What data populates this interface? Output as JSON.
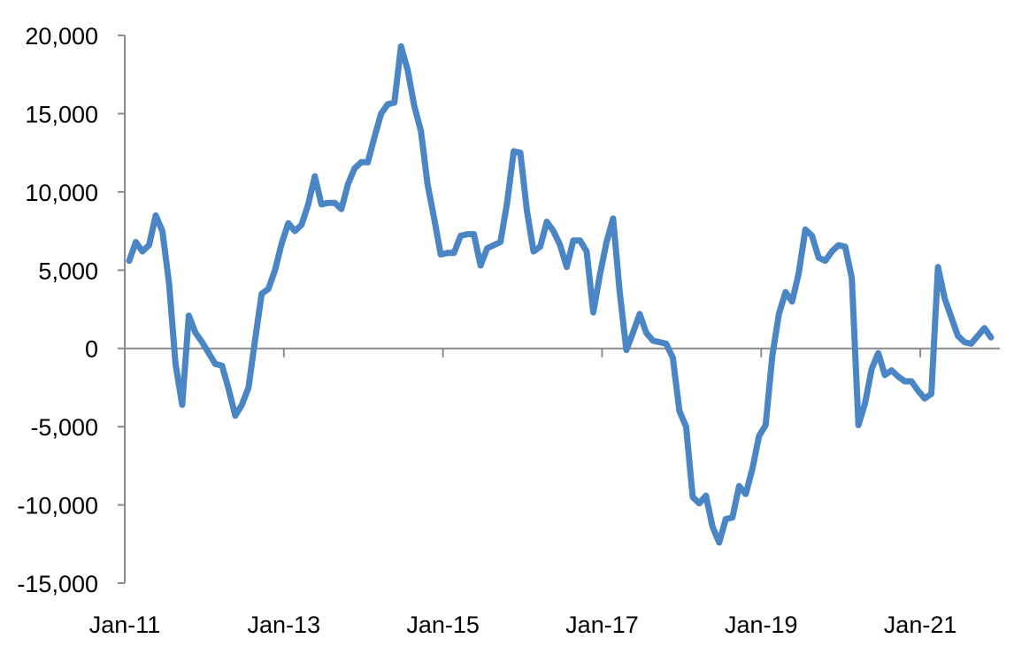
{
  "chart_data": {
    "type": "line",
    "title": "",
    "xlabel": "",
    "ylabel": "",
    "x_range": [
      "2011-01",
      "2021-12"
    ],
    "ylim": [
      -15000,
      20000
    ],
    "y_ticks": [
      20000,
      15000,
      10000,
      5000,
      0,
      -5000,
      -10000,
      -15000
    ],
    "y_tick_labels": [
      "20,000",
      "15,000",
      "10,000",
      "5,000",
      "0",
      "-5,000",
      "-10,000",
      "-15,000"
    ],
    "x_tick_labels": [
      "Jan-11",
      "Jan-13",
      "Jan-15",
      "Jan-17",
      "Jan-19",
      "Jan-21"
    ],
    "x_tick_dates": [
      "2011-01",
      "2013-01",
      "2015-01",
      "2017-01",
      "2019-01",
      "2021-01"
    ],
    "zero_line": true,
    "grid": false,
    "legend": "none",
    "colors": {
      "series": "#4A86C5",
      "axis": "#8C8C8C"
    },
    "series": [
      {
        "x": [
          "2011-01",
          "2011-02",
          "2011-03",
          "2011-04",
          "2011-05",
          "2011-06",
          "2011-07",
          "2011-08",
          "2011-09",
          "2011-10",
          "2011-11",
          "2011-12",
          "2012-01",
          "2012-02",
          "2012-03",
          "2012-04",
          "2012-05",
          "2012-06",
          "2012-07",
          "2012-08",
          "2012-09",
          "2012-10",
          "2012-11",
          "2012-12",
          "2013-01",
          "2013-02",
          "2013-03",
          "2013-04",
          "2013-05",
          "2013-06",
          "2013-07",
          "2013-08",
          "2013-09",
          "2013-10",
          "2013-11",
          "2013-12",
          "2014-01",
          "2014-02",
          "2014-03",
          "2014-04",
          "2014-05",
          "2014-06",
          "2014-07",
          "2014-08",
          "2014-09",
          "2014-10",
          "2014-11",
          "2014-12",
          "2015-01",
          "2015-02",
          "2015-03",
          "2015-04",
          "2015-05",
          "2015-06",
          "2015-07",
          "2015-08",
          "2015-09",
          "2015-10",
          "2015-11",
          "2015-12",
          "2016-01",
          "2016-02",
          "2016-03",
          "2016-04",
          "2016-05",
          "2016-06",
          "2016-07",
          "2016-08",
          "2016-09",
          "2016-10",
          "2016-11",
          "2016-12",
          "2017-01",
          "2017-02",
          "2017-03",
          "2017-04",
          "2017-05",
          "2017-06",
          "2017-07",
          "2017-08",
          "2017-09",
          "2017-10",
          "2017-11",
          "2017-12",
          "2018-01",
          "2018-02",
          "2018-03",
          "2018-04",
          "2018-05",
          "2018-06",
          "2018-07",
          "2018-08",
          "2018-09",
          "2018-10",
          "2018-11",
          "2018-12",
          "2019-01",
          "2019-02",
          "2019-03",
          "2019-04",
          "2019-05",
          "2019-06",
          "2019-07",
          "2019-08",
          "2019-09",
          "2019-10",
          "2019-11",
          "2019-12",
          "2020-01",
          "2020-02",
          "2020-03",
          "2020-04",
          "2020-05",
          "2020-06",
          "2020-07",
          "2020-08",
          "2020-09",
          "2020-10",
          "2020-11",
          "2020-12",
          "2021-01",
          "2021-02",
          "2021-03",
          "2021-04",
          "2021-05",
          "2021-06",
          "2021-07",
          "2021-08",
          "2021-09",
          "2021-10",
          "2021-11",
          "2021-12"
        ],
        "values": [
          5600,
          6800,
          6200,
          6600,
          8500,
          7500,
          4200,
          -1000,
          -3600,
          2100,
          1000,
          400,
          -300,
          -1000,
          -1100,
          -2600,
          -4300,
          -3600,
          -2500,
          600,
          3500,
          3800,
          5000,
          6700,
          8000,
          7500,
          7900,
          9200,
          11000,
          9200,
          9300,
          9300,
          8900,
          10500,
          11500,
          11900,
          11900,
          13500,
          15000,
          15600,
          15700,
          19300,
          17800,
          15500,
          13900,
          10500,
          8300,
          6000,
          6100,
          6100,
          7200,
          7300,
          7300,
          5300,
          6400,
          6600,
          6800,
          9300,
          12600,
          12500,
          8800,
          6200,
          6500,
          8100,
          7500,
          6600,
          5200,
          6900,
          6900,
          6200,
          2300,
          4700,
          6800,
          8300,
          3600,
          -100,
          1000,
          2200,
          1000,
          500,
          400,
          300,
          -600,
          -4000,
          -5000,
          -9500,
          -9900,
          -9400,
          -11400,
          -12400,
          -10900,
          -10800,
          -8800,
          -9300,
          -7700,
          -5600,
          -4900,
          -500,
          2200,
          3600,
          3000,
          4800,
          7600,
          7200,
          5800,
          5600,
          6200,
          6600,
          6500,
          4500,
          -4900,
          -3500,
          -1300,
          -300,
          -1700,
          -1400,
          -1800,
          -2100,
          -2100,
          -2700,
          -3200,
          -2900,
          5200,
          3200,
          2000,
          800,
          400,
          300,
          800,
          1300,
          700,
          null
        ]
      }
    ]
  }
}
